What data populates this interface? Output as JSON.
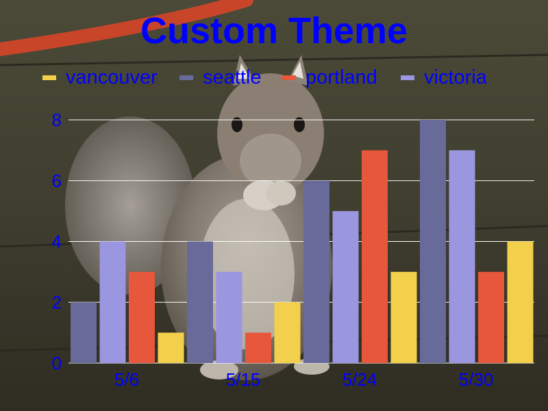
{
  "colors": {
    "text": "#0000ff",
    "grid": "#ffffff"
  },
  "chart_data": {
    "type": "bar",
    "title": "Custom Theme",
    "categories": [
      "5/6",
      "5/15",
      "5/24",
      "5/30"
    ],
    "series": [
      {
        "name": "seattle",
        "color": "#686a9a",
        "values": [
          2,
          4,
          6,
          8
        ]
      },
      {
        "name": "victoria",
        "color": "#9a96e0",
        "values": [
          4,
          3,
          5,
          7
        ]
      },
      {
        "name": "portland",
        "color": "#e6573c",
        "values": [
          3,
          1,
          7,
          3
        ]
      },
      {
        "name": "vancouver",
        "color": "#f2d04c",
        "values": [
          1,
          2,
          3,
          4
        ]
      }
    ],
    "legend": [
      {
        "name": "vancouver",
        "color": "#f2d04c"
      },
      {
        "name": "seattle",
        "color": "#686a9a"
      },
      {
        "name": "portland",
        "color": "#e6573c"
      },
      {
        "name": "victoria",
        "color": "#9a96e0"
      }
    ],
    "yticks": [
      0,
      2,
      4,
      6,
      8
    ],
    "ylim": [
      0,
      8
    ],
    "grid": true,
    "legend_position": "top",
    "background_image": "squirrel photo"
  }
}
